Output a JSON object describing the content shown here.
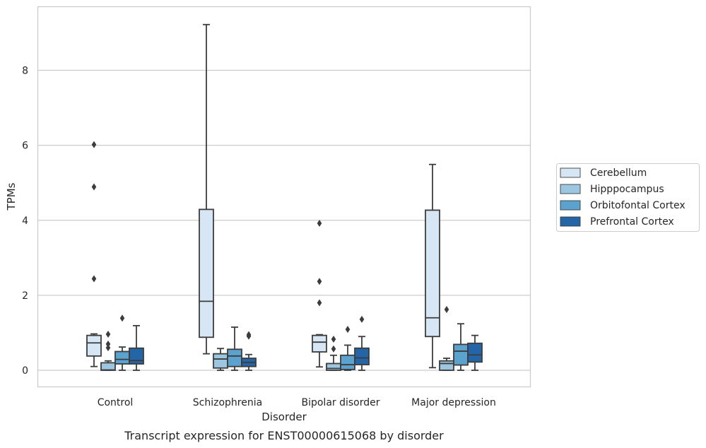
{
  "chart_data": {
    "type": "box",
    "title": "Transcript expression for ENST00000615068 by disorder",
    "xlabel": "Disorder",
    "ylabel": "TPMs",
    "ylim": [
      -0.45,
      9.7
    ],
    "yticks": [
      0,
      2,
      4,
      6,
      8
    ],
    "grid": "horizontal",
    "legend_position": "right",
    "categories": [
      "Control",
      "Schizophrenia",
      "Bipolar disorder",
      "Major depression"
    ],
    "series": [
      {
        "name": "Cerebellum",
        "color": "#d6e6f4",
        "boxes": [
          {
            "whislo": 0.1,
            "q1": 0.38,
            "med": 0.73,
            "q3": 0.93,
            "whishi": 0.97,
            "fliers": [
              2.44,
              4.89,
              6.02
            ]
          },
          {
            "whislo": 0.44,
            "q1": 0.88,
            "med": 1.84,
            "q3": 4.29,
            "whishi": 9.22,
            "fliers": []
          },
          {
            "whislo": 0.09,
            "q1": 0.49,
            "med": 0.75,
            "q3": 0.93,
            "whishi": 0.95,
            "fliers": [
              1.8,
              2.37,
              3.92
            ]
          },
          {
            "whislo": 0.07,
            "q1": 0.9,
            "med": 1.4,
            "q3": 4.27,
            "whishi": 5.49,
            "fliers": []
          }
        ]
      },
      {
        "name": "Hipppocampus",
        "color": "#9dc7e0",
        "boxes": [
          {
            "whislo": 0.0,
            "q1": 0.0,
            "med": 0.01,
            "q3": 0.2,
            "whishi": 0.25,
            "fliers": [
              0.6,
              0.7,
              0.96
            ]
          },
          {
            "whislo": 0.0,
            "q1": 0.06,
            "med": 0.3,
            "q3": 0.44,
            "whishi": 0.58,
            "fliers": []
          },
          {
            "whislo": 0.0,
            "q1": 0.0,
            "med": 0.05,
            "q3": 0.18,
            "whishi": 0.4,
            "fliers": [
              0.57,
              0.83
            ]
          },
          {
            "whislo": 0.0,
            "q1": 0.0,
            "med": 0.18,
            "q3": 0.25,
            "whishi": 0.32,
            "fliers": [
              1.62
            ]
          }
        ]
      },
      {
        "name": "Orbitofontal Cortex",
        "color": "#5ba2cf",
        "boxes": [
          {
            "whislo": 0.0,
            "q1": 0.17,
            "med": 0.29,
            "q3": 0.5,
            "whishi": 0.62,
            "fliers": [
              1.39
            ]
          },
          {
            "whislo": 0.0,
            "q1": 0.1,
            "med": 0.38,
            "q3": 0.56,
            "whishi": 1.15,
            "fliers": []
          },
          {
            "whislo": 0.0,
            "q1": 0.02,
            "med": 0.15,
            "q3": 0.4,
            "whishi": 0.67,
            "fliers": [
              1.09
            ]
          },
          {
            "whislo": 0.0,
            "q1": 0.14,
            "med": 0.51,
            "q3": 0.69,
            "whishi": 1.24,
            "fliers": []
          }
        ]
      },
      {
        "name": "Prefrontal Cortex",
        "color": "#2465a7",
        "boxes": [
          {
            "whislo": 0.0,
            "q1": 0.17,
            "med": 0.26,
            "q3": 0.59,
            "whishi": 1.19,
            "fliers": []
          },
          {
            "whislo": 0.0,
            "q1": 0.1,
            "med": 0.21,
            "q3": 0.32,
            "whishi": 0.42,
            "fliers": [
              0.91,
              0.95
            ]
          },
          {
            "whislo": 0.0,
            "q1": 0.15,
            "med": 0.33,
            "q3": 0.59,
            "whishi": 0.9,
            "fliers": [
              1.36
            ]
          },
          {
            "whislo": 0.0,
            "q1": 0.22,
            "med": 0.41,
            "q3": 0.72,
            "whishi": 0.93,
            "fliers": []
          }
        ]
      }
    ]
  }
}
